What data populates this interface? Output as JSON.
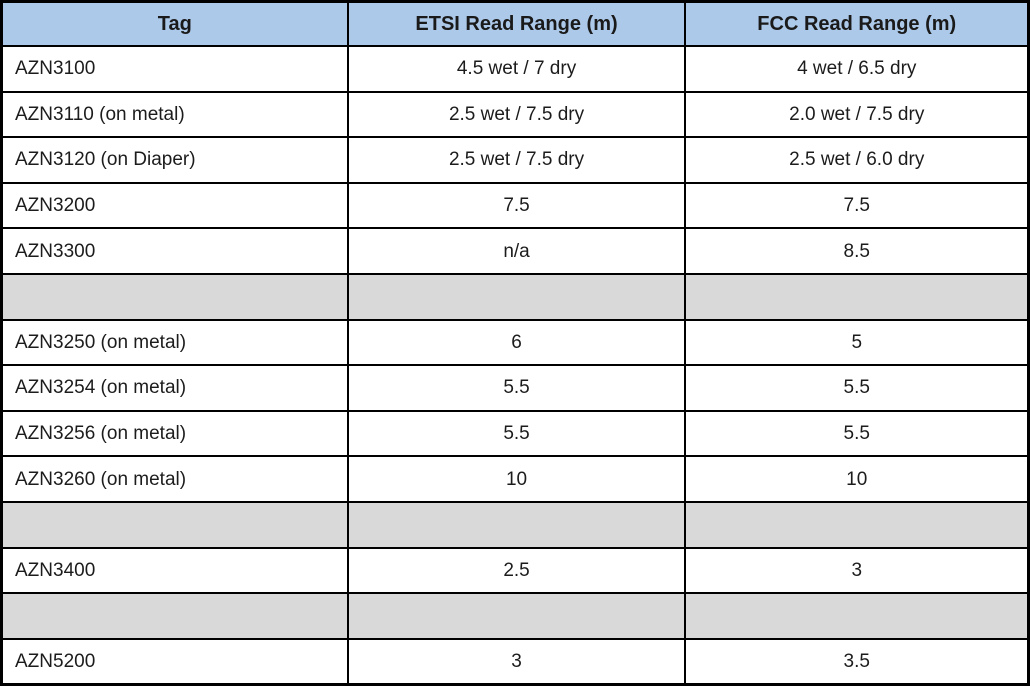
{
  "table": {
    "columns": [
      "Tag",
      "ETSI Read Range (m)",
      "FCC Read Range (m)"
    ],
    "rows": [
      {
        "type": "data",
        "cells": [
          "AZN3100",
          "4.5 wet / 7 dry",
          "4 wet / 6.5 dry"
        ]
      },
      {
        "type": "data",
        "cells": [
          "AZN3110 (on metal)",
          "2.5 wet / 7.5 dry",
          "2.0 wet / 7.5 dry"
        ]
      },
      {
        "type": "data",
        "cells": [
          "AZN3120 (on Diaper)",
          "2.5 wet / 7.5 dry",
          "2.5 wet / 6.0 dry"
        ]
      },
      {
        "type": "data",
        "cells": [
          "AZN3200",
          "7.5",
          "7.5"
        ]
      },
      {
        "type": "data",
        "cells": [
          "AZN3300",
          "n/a",
          "8.5"
        ]
      },
      {
        "type": "separator",
        "cells": [
          "",
          "",
          ""
        ]
      },
      {
        "type": "data",
        "cells": [
          "AZN3250 (on metal)",
          "6",
          "5"
        ]
      },
      {
        "type": "data",
        "cells": [
          "AZN3254 (on metal)",
          "5.5",
          "5.5"
        ]
      },
      {
        "type": "data",
        "cells": [
          "AZN3256 (on metal)",
          "5.5",
          "5.5"
        ]
      },
      {
        "type": "data",
        "cells": [
          "AZN3260 (on metal)",
          "10",
          "10"
        ]
      },
      {
        "type": "separator",
        "cells": [
          "",
          "",
          ""
        ]
      },
      {
        "type": "data",
        "cells": [
          "AZN3400",
          "2.5",
          "3"
        ]
      },
      {
        "type": "separator",
        "cells": [
          "",
          "",
          ""
        ]
      },
      {
        "type": "data",
        "cells": [
          "AZN5200",
          "3",
          "3.5"
        ]
      }
    ]
  },
  "chart_data": {
    "type": "table",
    "title": "",
    "columns": [
      "Tag",
      "ETSI Read Range (m)",
      "FCC Read Range (m)"
    ],
    "rows": [
      [
        "AZN3100",
        "4.5 wet / 7 dry",
        "4 wet / 6.5 dry"
      ],
      [
        "AZN3110 (on metal)",
        "2.5 wet / 7.5 dry",
        "2.0 wet / 7.5 dry"
      ],
      [
        "AZN3120 (on Diaper)",
        "2.5 wet / 7.5 dry",
        "2.5 wet / 6.0 dry"
      ],
      [
        "AZN3200",
        "7.5",
        "7.5"
      ],
      [
        "AZN3300",
        "n/a",
        "8.5"
      ],
      [
        "",
        "",
        ""
      ],
      [
        "AZN3250 (on metal)",
        "6",
        "5"
      ],
      [
        "AZN3254 (on metal)",
        "5.5",
        "5.5"
      ],
      [
        "AZN3256 (on metal)",
        "5.5",
        "5.5"
      ],
      [
        "AZN3260 (on metal)",
        "10",
        "10"
      ],
      [
        "",
        "",
        ""
      ],
      [
        "AZN3400",
        "2.5",
        "3"
      ],
      [
        "",
        "",
        ""
      ],
      [
        "AZN5200",
        "3",
        "3.5"
      ]
    ]
  },
  "colors": {
    "header_bg": "#acc9e9",
    "separator_bg": "#d9d9d9",
    "border": "#000000",
    "text": "#1c1c1c"
  }
}
